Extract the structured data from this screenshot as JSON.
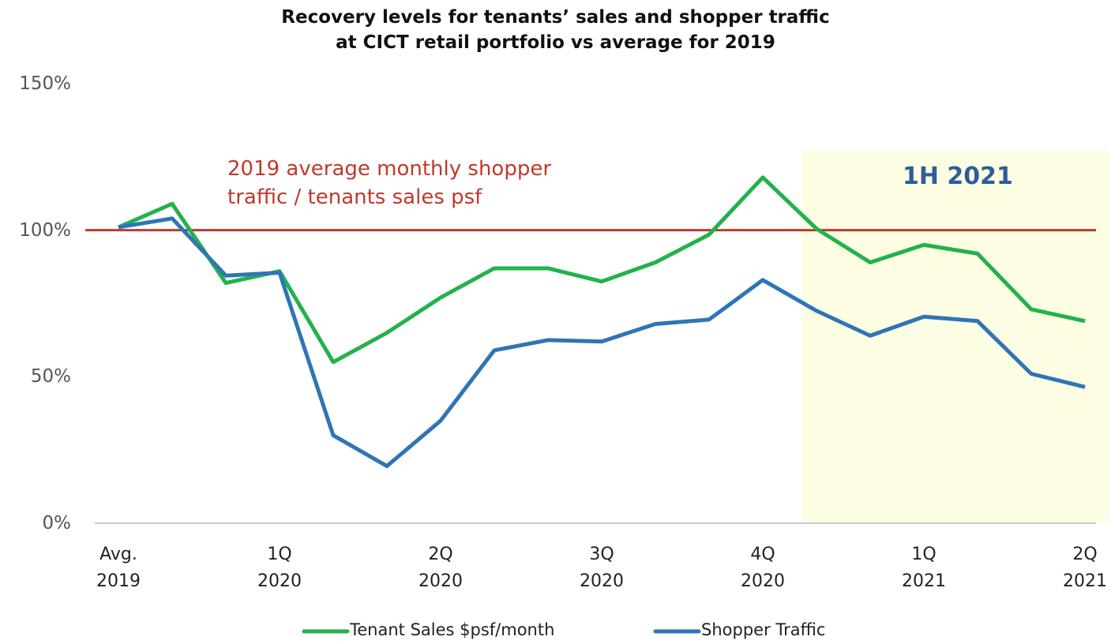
{
  "chart_data": {
    "type": "line",
    "title": "Recovery levels for tenants’ sales and shopper traffic\nat CICT retail portfolio vs average for 2019",
    "categories": [
      "Avg.\n2019",
      null,
      null,
      "1Q\n2020",
      null,
      null,
      "2Q\n2020",
      null,
      null,
      "3Q\n2020",
      null,
      null,
      "4Q\n2020",
      null,
      null,
      "1Q\n2021",
      null,
      null,
      "2Q\n2021"
    ],
    "series": [
      {
        "name": "Tenant Sales $psf/month",
        "color": "#22b24c",
        "values": [
          101,
          109,
          82,
          86,
          55,
          65,
          77,
          87,
          87,
          82.5,
          89,
          98.5,
          118,
          100.5,
          89,
          95,
          92,
          73,
          69
        ]
      },
      {
        "name": "Shopper Traffic",
        "color": "#2e75b6",
        "values": [
          101,
          104,
          84.5,
          85.5,
          30,
          19.5,
          35,
          59,
          62.5,
          62,
          68,
          69.5,
          83,
          72.5,
          64,
          70.5,
          69,
          51,
          46.5
        ]
      }
    ],
    "ylim": [
      0,
      150
    ],
    "yticks": [
      {
        "value": 0,
        "label": "0%"
      },
      {
        "value": 50,
        "label": "50%"
      },
      {
        "value": 100,
        "label": "100%"
      },
      {
        "value": 150,
        "label": "150%"
      }
    ],
    "grid": false,
    "reference_line": {
      "value": 100,
      "label": "2019 average monthly shopper\ntraffic / tenants sales psf",
      "color": "#c0392b"
    },
    "highlight": {
      "label": "1H 2021",
      "color": "#fdfde3"
    },
    "legend": "bottom"
  }
}
